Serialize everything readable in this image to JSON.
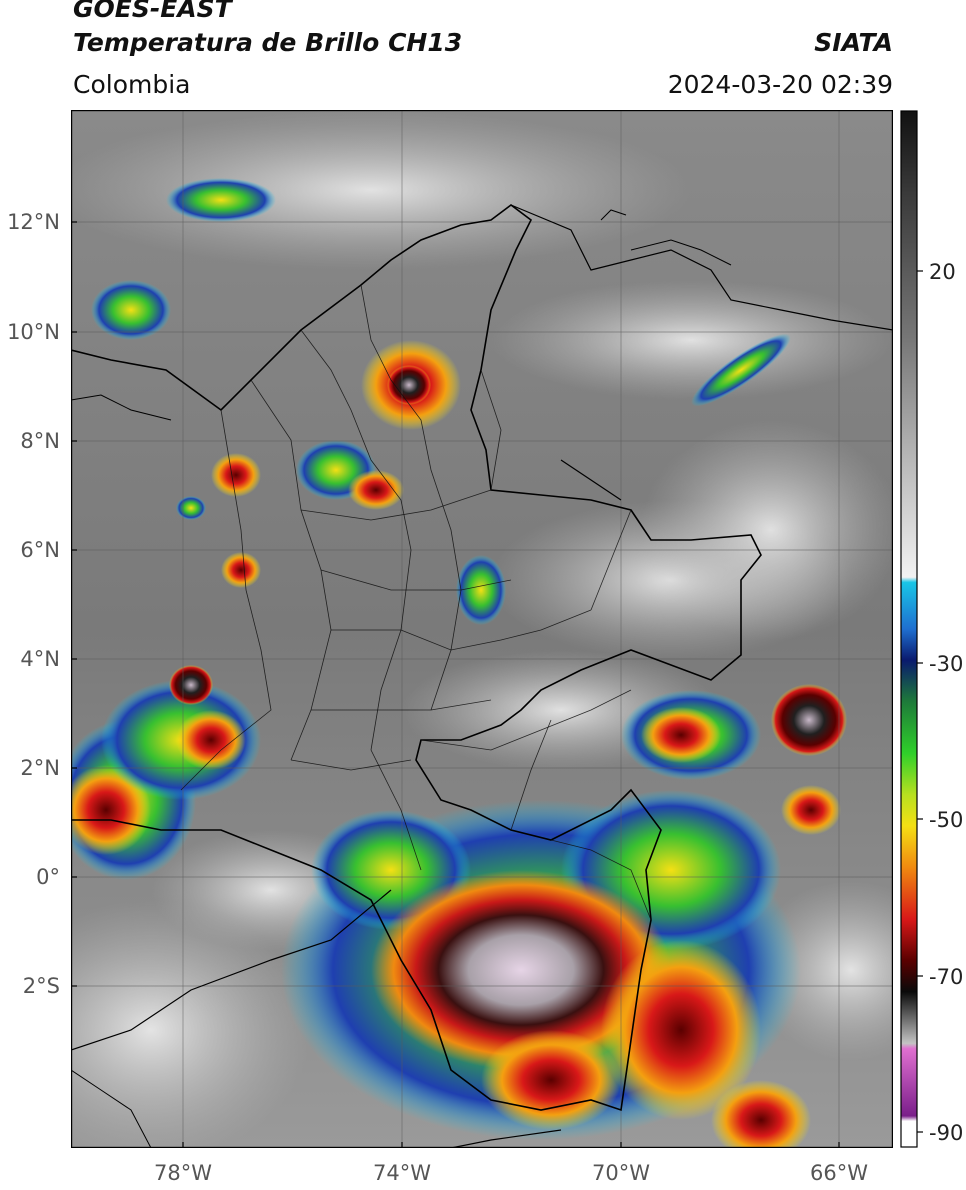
{
  "header": {
    "satellite": "GOES-EAST",
    "product": "Temperatura de Brillo CH13",
    "agency": "SIATA",
    "region": "Colombia",
    "timestamp": "2024-03-20 02:39"
  },
  "map": {
    "lat_ticks": [
      "12°N",
      "10°N",
      "8°N",
      "6°N",
      "4°N",
      "2°N",
      "0°",
      "2°S"
    ],
    "lon_ticks": [
      "78°W",
      "74°W",
      "70°W",
      "66°W"
    ]
  },
  "colorbar": {
    "ticks": [
      "20",
      "-30",
      "-50",
      "-70",
      "-90"
    ],
    "colors": {
      "top_black": "#111111",
      "gray_high": "#4a4a4a",
      "gray_mid": "#8d8d8d",
      "gray_low": "#ededed",
      "cyan": "#19c6e6",
      "blue": "#1f3fb0",
      "navy": "#0a1a6e",
      "green": "#22bb22",
      "yellow": "#f4e014",
      "orange": "#f08a10",
      "red": "#d81818",
      "darkred": "#5a0000",
      "black_band": "#0a0a0a",
      "light_gray": "#c4c4c4",
      "pink": "#e060c8",
      "purple": "#7a1e8a",
      "white_bottom": "#ffffff"
    }
  }
}
